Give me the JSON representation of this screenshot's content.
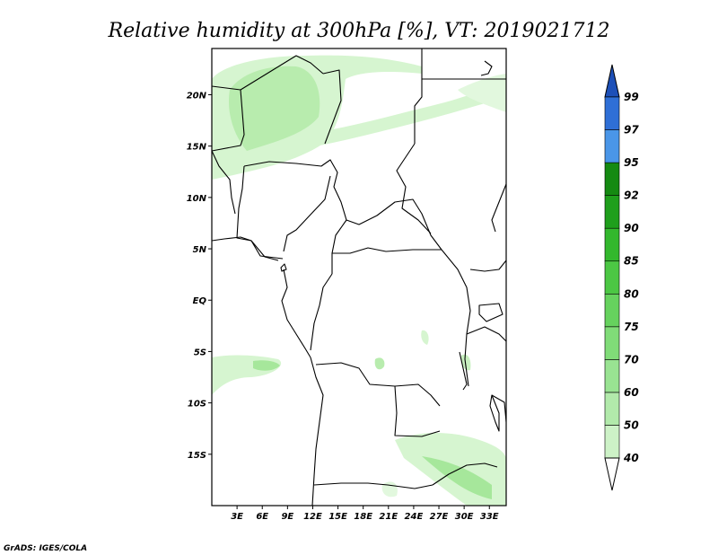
{
  "title": "Relative humidity at 300hPa [%], VT: 2019021712",
  "credit": "GrADS: IGES/COLA",
  "map": {
    "lon_range": [
      0,
      35
    ],
    "lat_range": [
      -20,
      24.5
    ],
    "lat_ticks": [
      {
        "lat": 20,
        "label": "20N"
      },
      {
        "lat": 15,
        "label": "15N"
      },
      {
        "lat": 10,
        "label": "10N"
      },
      {
        "lat": 5,
        "label": "5N"
      },
      {
        "lat": 0,
        "label": "EQ"
      },
      {
        "lat": -5,
        "label": "5S"
      },
      {
        "lat": -10,
        "label": "10S"
      },
      {
        "lat": -15,
        "label": "15S"
      }
    ],
    "lon_ticks": [
      {
        "lon": 3,
        "label": "3E"
      },
      {
        "lon": 6,
        "label": "6E"
      },
      {
        "lon": 9,
        "label": "9E"
      },
      {
        "lon": 12,
        "label": "12E"
      },
      {
        "lon": 15,
        "label": "15E"
      },
      {
        "lon": 18,
        "label": "18E"
      },
      {
        "lon": 21,
        "label": "21E"
      },
      {
        "lon": 24,
        "label": "24E"
      },
      {
        "lon": 27,
        "label": "27E"
      },
      {
        "lon": 30,
        "label": "30E"
      },
      {
        "lon": 33,
        "label": "33E"
      }
    ]
  },
  "colorbar": {
    "levels": [
      "40",
      "50",
      "60",
      "70",
      "75",
      "80",
      "85",
      "90",
      "92",
      "95",
      "97",
      "99"
    ],
    "colors": [
      "#e6f9e2",
      "#cdf2c7",
      "#b2eaab",
      "#99e392",
      "#80dc78",
      "#66d25e",
      "#4cc744",
      "#33b82d",
      "#1f9f1c",
      "#158a12",
      "#4a96e8",
      "#2f6fd6",
      "#1d50b8"
    ],
    "bottom_color": "#ffffff"
  }
}
